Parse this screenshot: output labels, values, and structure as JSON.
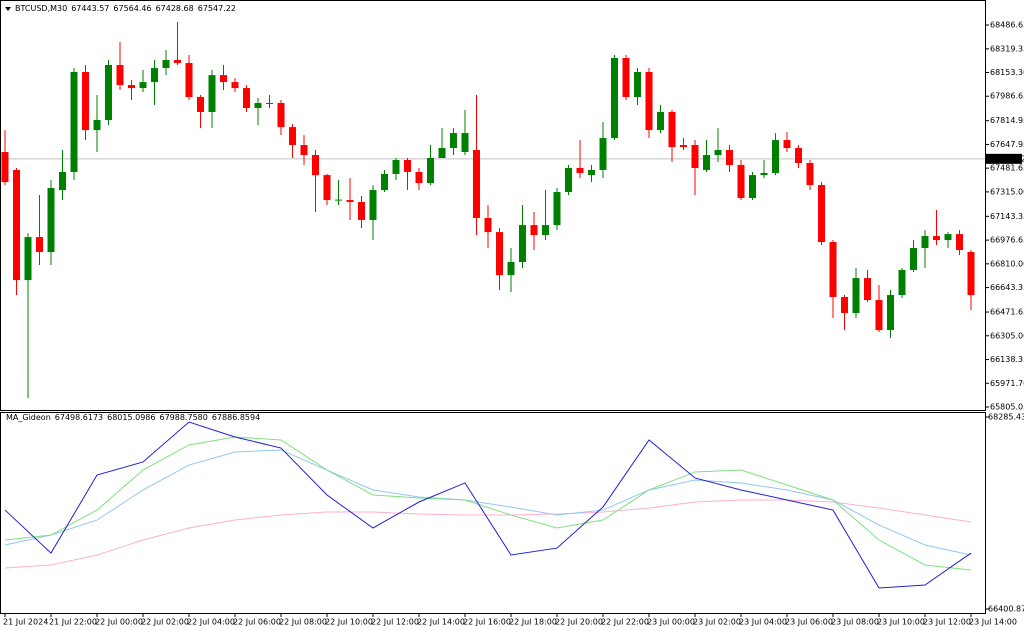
{
  "chart_data": [
    {
      "type": "candlestick",
      "symbol": "BTCUSD,M30",
      "header_values": [
        67443.57,
        67564.46,
        67428.68,
        67547.22
      ],
      "current_price": 67547.22,
      "ylim": [
        65805.05,
        68486.65
      ],
      "yticks": [
        68486.65,
        68319.35,
        {
          "value": 68153.3,
          "label": "68153.30"
        },
        67986.65,
        67814.95,
        67647.95,
        67481.65,
        {
          "value": 67315,
          "label": "67315.00"
        },
        67143.35,
        66976.65,
        {
          "value": 66810,
          "label": "66810.00"
        },
        66643.35,
        66471.65,
        {
          "value": 66305,
          "label": "66305.00"
        },
        66138.35,
        {
          "value": 65971.7,
          "label": "65971.70"
        },
        65805.05
      ],
      "xticks": [
        {
          "value": 0,
          "label": "21 Jul 2024"
        },
        {
          "value": 4,
          "label": "21 Jul 22:00"
        },
        {
          "value": 8,
          "label": "22 Jul 00:00"
        },
        {
          "value": 12,
          "label": "22 Jul 02:00"
        },
        {
          "value": 16,
          "label": "22 Jul 04:00"
        },
        {
          "value": 20,
          "label": "22 Jul 06:00"
        },
        {
          "value": 24,
          "label": "22 Jul 08:00"
        },
        {
          "value": 28,
          "label": "22 Jul 10:00"
        },
        {
          "value": 32,
          "label": "22 Jul 12:00"
        },
        {
          "value": 36,
          "label": "22 Jul 14:00"
        },
        {
          "value": 40,
          "label": "22 Jul 16:00"
        },
        {
          "value": 44,
          "label": "22 Jul 18:00"
        },
        {
          "value": 48,
          "label": "22 Jul 20:00"
        },
        {
          "value": 52,
          "label": "22 Jul 22:00"
        },
        {
          "value": 56,
          "label": "23 Jul 00:00"
        },
        {
          "value": 60,
          "label": "23 Jul 02:00"
        },
        {
          "value": 64,
          "label": "23 Jul 04:00"
        },
        {
          "value": 68,
          "label": "23 Jul 06:00"
        },
        {
          "value": 72,
          "label": "23 Jul 08:00"
        },
        {
          "value": 76,
          "label": "23 Jul 10:00"
        },
        {
          "value": 80,
          "label": "23 Jul 12:00"
        },
        {
          "value": 84,
          "label": "23 Jul 14:00"
        }
      ],
      "colors": {
        "up": "#008000",
        "down": "#ff0000",
        "price_line": "#c0c0c0"
      },
      "candles": [
        [
          67595,
          67749,
          67363,
          67384
        ],
        [
          67469,
          67483,
          66591,
          66696
        ],
        [
          66696,
          67026,
          65868,
          66998
        ],
        [
          66998,
          67293,
          66802,
          66893
        ],
        [
          66893,
          67398,
          66802,
          67342
        ],
        [
          67328,
          67609,
          67258,
          67455
        ],
        [
          67455,
          68185,
          67398,
          68157
        ],
        [
          68157,
          68206,
          67679,
          67749
        ],
        [
          67749,
          67995,
          67595,
          67820
        ],
        [
          67820,
          68241,
          67784,
          68206
        ],
        [
          68206,
          68367,
          68030,
          68065
        ],
        [
          68065,
          68100,
          67960,
          68044
        ],
        [
          68044,
          68171,
          68016,
          68086
        ],
        [
          68086,
          68241,
          67925,
          68185
        ],
        [
          68185,
          68311,
          68135,
          68241
        ],
        [
          68241,
          68508,
          68206,
          68220
        ],
        [
          68220,
          68276,
          67960,
          67981
        ],
        [
          67981,
          67995,
          67763,
          67876
        ],
        [
          67876,
          68171,
          67763,
          68135
        ],
        [
          68135,
          68206,
          68030,
          68086
        ],
        [
          68086,
          68114,
          68016,
          68044
        ],
        [
          68044,
          68065,
          67876,
          67904
        ],
        [
          67904,
          67974,
          67784,
          67939
        ],
        [
          67939,
          67995,
          67904,
          67936
        ],
        [
          67939,
          67960,
          67714,
          67770
        ],
        [
          67770,
          67792,
          67553,
          67644
        ],
        [
          67644,
          67714,
          67504,
          67574
        ],
        [
          67574,
          67609,
          67174,
          67433
        ],
        [
          67433,
          67441,
          67223,
          67258
        ],
        [
          67258,
          67398,
          67223,
          67261
        ],
        [
          67258,
          67412,
          67118,
          67244
        ],
        [
          67244,
          67286,
          67061,
          67118
        ],
        [
          67118,
          67363,
          66977,
          67328
        ],
        [
          67328,
          67469,
          67314,
          67441
        ],
        [
          67441,
          67553,
          67398,
          67539
        ],
        [
          67539,
          67553,
          67328,
          67455
        ],
        [
          67455,
          67483,
          67328,
          67377
        ],
        [
          67377,
          67644,
          67363,
          67553
        ],
        [
          67553,
          67763,
          67553,
          67623
        ],
        [
          67623,
          67763,
          67574,
          67728
        ],
        [
          67595,
          67890,
          67574,
          67728
        ],
        [
          67609,
          67995,
          67012,
          67132
        ],
        [
          67132,
          67223,
          66921,
          67033
        ],
        [
          67033,
          67061,
          66626,
          66731
        ],
        [
          66731,
          66921,
          66612,
          66823
        ],
        [
          66823,
          67223,
          66781,
          67082
        ],
        [
          67082,
          67174,
          66907,
          67012
        ],
        [
          67012,
          67328,
          66977,
          67082
        ],
        [
          67082,
          67342,
          67047,
          67314
        ],
        [
          67314,
          67504,
          67293,
          67483
        ],
        [
          67483,
          67679,
          67412,
          67448
        ],
        [
          67433,
          67504,
          67384,
          67469
        ],
        [
          67469,
          67806,
          67412,
          67693
        ],
        [
          67693,
          68276,
          67679,
          68255
        ],
        [
          68255,
          68276,
          67960,
          67981
        ],
        [
          67981,
          68185,
          67925,
          68157
        ],
        [
          68157,
          68185,
          67693,
          67749
        ],
        [
          67749,
          67925,
          67728,
          67876
        ],
        [
          67876,
          67890,
          67525,
          67630
        ],
        [
          67644,
          67693,
          67609,
          67630
        ],
        [
          67644,
          67679,
          67293,
          67483
        ],
        [
          67469,
          67679,
          67455,
          67574
        ],
        [
          67574,
          67763,
          67525,
          67609
        ],
        [
          67609,
          67644,
          67455,
          67504
        ],
        [
          67504,
          67539,
          67258,
          67272
        ],
        [
          67272,
          67455,
          67258,
          67433
        ],
        [
          67433,
          67539,
          67412,
          67448
        ],
        [
          67448,
          67728,
          67433,
          67679
        ],
        [
          67679,
          67735,
          67595,
          67623
        ],
        [
          67623,
          67644,
          67483,
          67518
        ],
        [
          67518,
          67539,
          67328,
          67363
        ],
        [
          67363,
          67384,
          66942,
          66963
        ],
        [
          66963,
          66977,
          66430,
          66577
        ],
        [
          66577,
          66591,
          66345,
          66465
        ],
        [
          66465,
          66781,
          66430,
          66710
        ],
        [
          66710,
          66767,
          66542,
          66556
        ],
        [
          66556,
          66661,
          66331,
          66345
        ],
        [
          66345,
          66626,
          66289,
          66591
        ],
        [
          66591,
          66781,
          66570,
          66767
        ],
        [
          66767,
          66977,
          66753,
          66921
        ],
        [
          66921,
          67047,
          66781,
          67005
        ],
        [
          67005,
          67188,
          66942,
          66977
        ],
        [
          66977,
          67033,
          66921,
          67019
        ],
        [
          67019,
          67047,
          66872,
          66907
        ],
        [
          66893,
          66907,
          66486,
          66591
        ]
      ]
    },
    {
      "type": "line",
      "title": "MA_Gideon",
      "header_values": [
        67498.6173,
        68015.0986,
        {
          "value": 67988.758,
          "label": "67988.7580"
        },
        67886.8594
      ],
      "ylim": [
        66400.8724,
        68285.4313
      ],
      "yticks": [
        68285.4313,
        66400.8724
      ],
      "x": [
        0,
        4,
        8,
        12,
        16,
        20,
        24,
        28,
        32,
        36,
        40,
        44,
        48,
        52,
        56,
        60,
        64,
        68,
        72,
        76,
        80,
        84
      ],
      "series": [
        {
          "color": "#ffb0c8",
          "values": [
            66803,
            66833,
            66931,
            67078,
            67196,
            67274,
            67323,
            67353,
            67353,
            67333,
            67323,
            67323,
            67333,
            67353,
            67392,
            67451,
            67471,
            67471,
            67451,
            67392,
            67323,
            67255
          ]
        },
        {
          "color": "#90c8f0",
          "values": [
            67029,
            67127,
            67274,
            67569,
            67814,
            67942,
            67962,
            67765,
            67569,
            67500,
            67471,
            67402,
            67323,
            67372,
            67569,
            67667,
            67638,
            67569,
            67471,
            67225,
            67029,
            66931
          ]
        },
        {
          "color": "#80e080",
          "values": [
            67078,
            67127,
            67372,
            67765,
            68011,
            68089,
            68060,
            67765,
            67520,
            67490,
            67471,
            67323,
            67196,
            67274,
            67569,
            67746,
            67765,
            67618,
            67471,
            67078,
            66833,
            66784
          ]
        },
        {
          "color": "#2020d0",
          "values": [
            67372,
            66950,
            67716,
            67844,
            68236,
            68089,
            67981,
            67520,
            67196,
            67451,
            67638,
            66931,
            66999,
            67402,
            68060,
            67687,
            67569,
            67471,
            67372,
            66607,
            66636,
            66950
          ]
        }
      ]
    }
  ]
}
